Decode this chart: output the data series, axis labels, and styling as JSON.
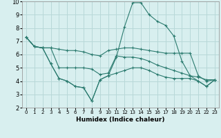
{
  "x": [
    0,
    1,
    2,
    3,
    4,
    5,
    6,
    7,
    8,
    9,
    10,
    11,
    12,
    13,
    14,
    15,
    16,
    17,
    18,
    19,
    20,
    21,
    22,
    23
  ],
  "line_max": [
    7.3,
    6.6,
    6.5,
    5.3,
    4.2,
    4.0,
    3.6,
    3.5,
    2.5,
    4.1,
    4.4,
    5.8,
    8.1,
    9.9,
    9.9,
    9.0,
    8.5,
    8.2,
    7.4,
    5.5,
    4.4,
    4.0,
    3.6,
    4.1
  ],
  "line_q3": [
    7.3,
    6.6,
    6.5,
    6.5,
    6.4,
    6.3,
    6.3,
    6.2,
    6.0,
    5.9,
    6.3,
    6.4,
    6.5,
    6.5,
    6.4,
    6.3,
    6.2,
    6.1,
    6.1,
    6.1,
    6.1,
    4.4,
    4.0,
    4.1
  ],
  "line_mean": [
    7.3,
    6.6,
    6.5,
    6.5,
    5.0,
    5.0,
    5.0,
    5.0,
    4.9,
    4.5,
    4.6,
    5.9,
    5.8,
    5.8,
    5.7,
    5.5,
    5.2,
    5.0,
    4.8,
    4.6,
    4.4,
    4.3,
    4.1,
    4.1
  ],
  "line_min": [
    7.3,
    6.6,
    6.5,
    5.3,
    4.2,
    4.0,
    3.6,
    3.5,
    2.5,
    4.1,
    4.4,
    4.6,
    4.8,
    5.0,
    5.0,
    4.8,
    4.5,
    4.3,
    4.2,
    4.2,
    4.2,
    4.0,
    3.6,
    4.1
  ],
  "color": "#2a7a6e",
  "bg_color": "#d8efef",
  "grid_color": "#b8d8d8",
  "xlabel": "Humidex (Indice chaleur)",
  "ylim": [
    2,
    10
  ],
  "xlim": [
    -0.5,
    23.5
  ],
  "yticks": [
    2,
    3,
    4,
    5,
    6,
    7,
    8,
    9,
    10
  ],
  "xticks": [
    0,
    1,
    2,
    3,
    4,
    5,
    6,
    7,
    8,
    9,
    10,
    11,
    12,
    13,
    14,
    15,
    16,
    17,
    18,
    19,
    20,
    21,
    22,
    23
  ]
}
